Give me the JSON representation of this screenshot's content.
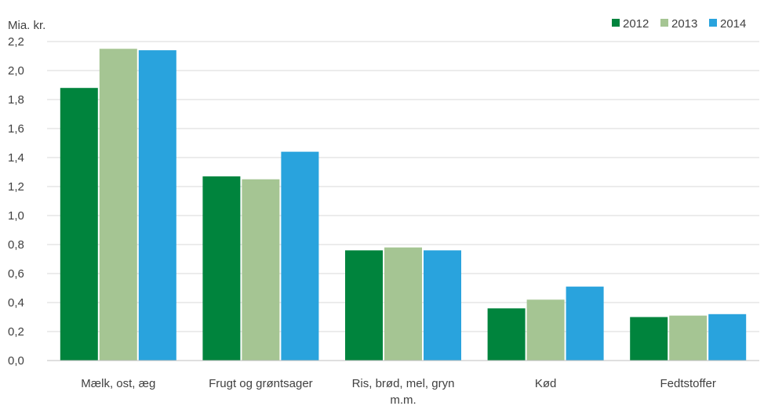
{
  "chart_data": {
    "type": "bar",
    "ylabel": "Mia. kr.",
    "categories": [
      [
        "Mælk, ost, æg"
      ],
      [
        "Frugt og grøntsager"
      ],
      [
        "Ris, brød, mel, gryn",
        "m.m."
      ],
      [
        "Kød"
      ],
      [
        "Fedtstoffer"
      ]
    ],
    "series": [
      {
        "name": "2012",
        "color": "#00843d",
        "values": [
          1.88,
          1.27,
          0.76,
          0.36,
          0.3
        ]
      },
      {
        "name": "2013",
        "color": "#a5c593",
        "values": [
          2.15,
          1.25,
          0.78,
          0.42,
          0.31
        ]
      },
      {
        "name": "2014",
        "color": "#29a3dd",
        "values": [
          2.14,
          1.44,
          0.76,
          0.51,
          0.32
        ]
      }
    ],
    "ylim": [
      0,
      2.2
    ],
    "yticks": [
      "0,0",
      "0,2",
      "0,4",
      "0,6",
      "0,8",
      "1,0",
      "1,2",
      "1,4",
      "1,6",
      "1,8",
      "2,0",
      "2,2"
    ],
    "ytick_values": [
      0,
      0.2,
      0.4,
      0.6,
      0.8,
      1.0,
      1.2,
      1.4,
      1.6,
      1.8,
      2.0,
      2.2
    ],
    "grid": true,
    "legend_position": "top-right"
  }
}
